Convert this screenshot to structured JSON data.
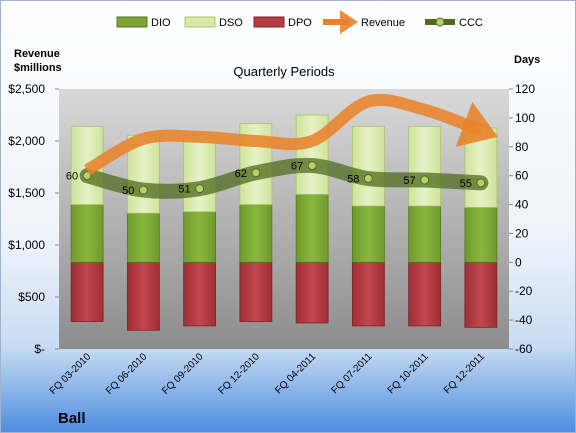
{
  "chart_data": {
    "type": "bar",
    "subtitle": "Quarterly Periods",
    "company": "Ball",
    "left_axis": {
      "title_lines": [
        "Revenue",
        "$millions"
      ],
      "range": [
        0,
        2500
      ],
      "ticks": [
        0,
        500,
        1000,
        1500,
        2000,
        2500
      ],
      "tick_labels": [
        "$-",
        "$500",
        "$1,000",
        "$1,500",
        "$2,000",
        "$2,500"
      ]
    },
    "right_axis": {
      "title": "Days",
      "range": [
        -60,
        120
      ],
      "ticks": [
        -60,
        -40,
        -20,
        0,
        20,
        40,
        60,
        80,
        100,
        120
      ],
      "tick_labels": [
        "-60",
        "-40",
        "-20",
        "0",
        "20",
        "40",
        "60",
        "80",
        "100",
        "120"
      ]
    },
    "categories": [
      "FQ 03-2010",
      "FQ 06-2010",
      "FQ 09-2010",
      "FQ 12-2010",
      "FQ 04-2011",
      "FQ 07-2011",
      "FQ 10-2011",
      "FQ 12-2011"
    ],
    "legend": [
      "DIO",
      "DSO",
      "DPO",
      "Revenue",
      "CCC"
    ],
    "legend_position": "top",
    "series": [
      {
        "name": "DIO",
        "type": "bar",
        "axis": "right",
        "values": [
          40,
          34,
          35,
          40,
          47,
          39,
          39,
          38
        ],
        "color": "#7fa435"
      },
      {
        "name": "DSO",
        "type": "bar",
        "axis": "right",
        "values": [
          54,
          54,
          53,
          56,
          55,
          55,
          55,
          55
        ],
        "color": "#d7e8a8"
      },
      {
        "name": "DPO",
        "type": "bar",
        "axis": "right",
        "values": [
          -41,
          -47,
          -44,
          -41,
          -42,
          -44,
          -44,
          -45
        ],
        "color": "#b43c42"
      },
      {
        "name": "Revenue",
        "type": "line",
        "axis": "left",
        "values": [
          1720,
          2020,
          2040,
          2000,
          2000,
          2380,
          2300,
          2100
        ],
        "color": "#e8832b"
      },
      {
        "name": "CCC",
        "type": "line",
        "axis": "right",
        "values": [
          60,
          50,
          51,
          62,
          67,
          58,
          57,
          55
        ],
        "labels": [
          "60",
          "50",
          "51",
          "62",
          "67",
          "58",
          "57",
          "55"
        ],
        "color": "#5d7a26"
      }
    ],
    "grid": false
  }
}
